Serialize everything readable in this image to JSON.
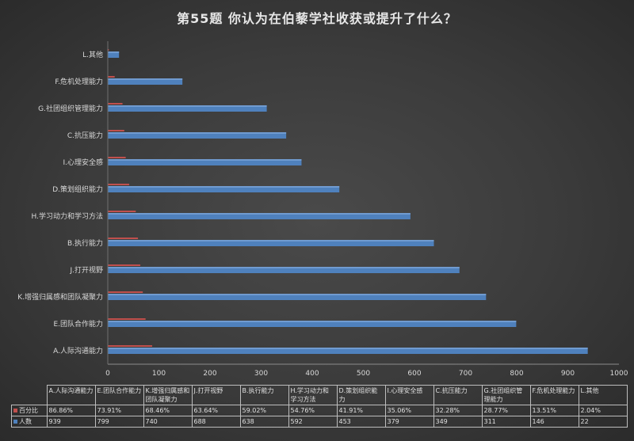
{
  "chart_data": {
    "type": "bar",
    "orientation": "horizontal",
    "title": "第55题   你认为在伯藜学社收获或提升了什么？",
    "categories": [
      "A.人际沟通能力",
      "E.团队合作能力",
      "K.增强归属感和团队凝聚力",
      "J.打开视野",
      "B.执行能力",
      "H.学习动力和学习方法",
      "D.策划组织能力",
      "I.心理安全感",
      "C.抗压能力",
      "G.社团组织管理能力",
      "F.危机处理能力",
      "L.其他"
    ],
    "table_headers": [
      "A.人际沟通能力",
      "E.团队合作能力",
      "K.增强归属感和团队凝聚力",
      "J.打开视野",
      "B.执行能力",
      "H.学习动力和学习方法",
      "D.策划组织能力",
      "I.心理安全感",
      "C.抗压能力",
      "G.社团组织管理能力",
      "F.危机处理能力",
      "L.其他"
    ],
    "series": [
      {
        "name": "百分比",
        "color": "#c0504d",
        "values": [
          86.86,
          73.91,
          68.46,
          63.64,
          59.02,
          54.76,
          41.91,
          35.06,
          32.28,
          28.77,
          13.51,
          2.04
        ],
        "labels": [
          "86.86%",
          "73.91%",
          "68.46%",
          "63.64%",
          "59.02%",
          "54.76%",
          "41.91%",
          "35.06%",
          "32.28%",
          "28.77%",
          "13.51%",
          "2.04%"
        ]
      },
      {
        "name": "人数",
        "color": "#4f81bd",
        "values": [
          939,
          799,
          740,
          688,
          638,
          592,
          453,
          379,
          349,
          311,
          146,
          22
        ],
        "labels": [
          "939",
          "799",
          "740",
          "688",
          "638",
          "592",
          "453",
          "379",
          "349",
          "311",
          "146",
          "22"
        ]
      }
    ],
    "xlim": [
      0,
      1000
    ],
    "x_ticks": [
      "0",
      "100",
      "200",
      "300",
      "400",
      "500",
      "600",
      "700",
      "800",
      "900",
      "1000"
    ],
    "gridlines": false,
    "legend": "data-table"
  }
}
